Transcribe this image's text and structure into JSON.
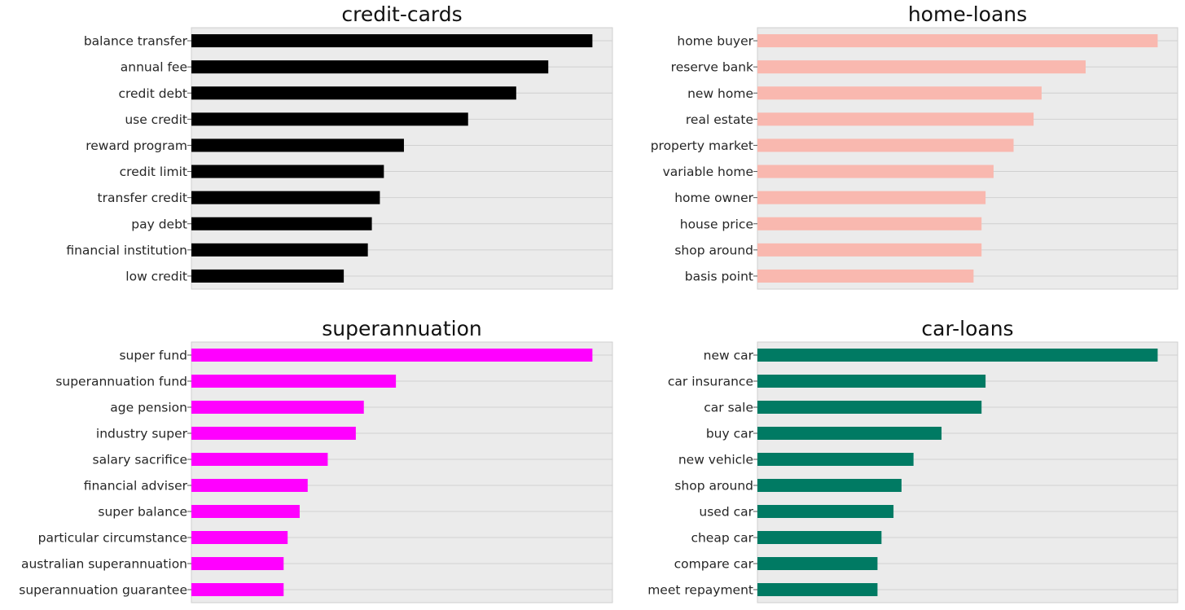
{
  "chart_data": [
    {
      "type": "bar",
      "orientation": "horizontal",
      "title": "credit-cards",
      "color": "#000000",
      "grid": true,
      "x_ticks_shown": false,
      "categories": [
        "balance transfer",
        "annual fee",
        "credit debt",
        "use credit",
        "reward program",
        "credit limit",
        "transfer credit",
        "pay debt",
        "financial institution",
        "low credit"
      ],
      "values": [
        100,
        89,
        81,
        69,
        53,
        48,
        47,
        45,
        44,
        38
      ],
      "xlim": [
        0,
        105
      ]
    },
    {
      "type": "bar",
      "orientation": "horizontal",
      "title": "home-loans",
      "color": "#F9B8AF",
      "grid": true,
      "x_ticks_shown": false,
      "categories": [
        "home buyer",
        "reserve bank",
        "new home",
        "real estate",
        "property market",
        "variable home",
        "home owner",
        "house price",
        "shop around",
        "basis point"
      ],
      "values": [
        100,
        82,
        71,
        69,
        64,
        59,
        57,
        56,
        56,
        54
      ],
      "xlim": [
        0,
        105
      ]
    },
    {
      "type": "bar",
      "orientation": "horizontal",
      "title": "superannuation",
      "color": "#FF00FF",
      "grid": true,
      "x_ticks_shown": false,
      "categories": [
        "super fund",
        "superannuation fund",
        "age pension",
        "industry super",
        "salary sacrifice",
        "financial adviser",
        "super balance",
        "particular circumstance",
        "australian superannuation",
        "superannuation guarantee"
      ],
      "values": [
        100,
        51,
        43,
        41,
        34,
        29,
        27,
        24,
        23,
        23
      ],
      "xlim": [
        0,
        105
      ]
    },
    {
      "type": "bar",
      "orientation": "horizontal",
      "title": "car-loans",
      "color": "#007A63",
      "grid": true,
      "x_ticks_shown": false,
      "categories": [
        "new car",
        "car insurance",
        "car sale",
        "buy car",
        "new vehicle",
        "shop around",
        "used car",
        "cheap car",
        "compare car",
        "meet repayment"
      ],
      "values": [
        100,
        57,
        56,
        46,
        39,
        36,
        34,
        31,
        30,
        30
      ],
      "xlim": [
        0,
        105
      ]
    }
  ]
}
